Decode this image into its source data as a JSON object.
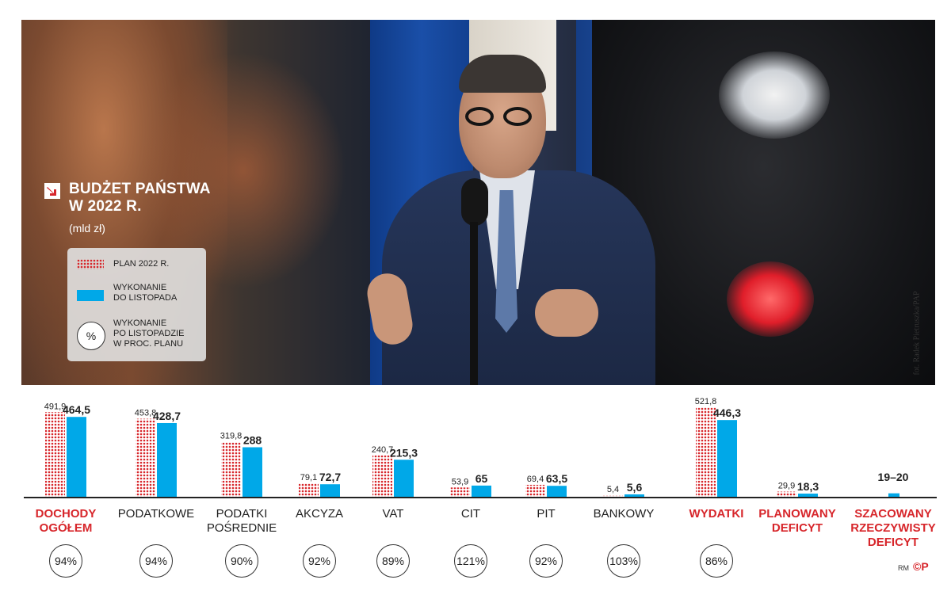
{
  "title": {
    "line1": "BUDŻET PAŃSTWA",
    "line2": "W 2022 R.",
    "unit": "(mld zł)"
  },
  "legend": {
    "plan": "PLAN 2022 R.",
    "exec_line1": "WYKONANIE",
    "exec_line2": "DO LISTOPADA",
    "pct_symbol": "%",
    "pct_line1": "WYKONANIE",
    "pct_line2": "PO LISTOPADZIE",
    "pct_line3": "W PROC. PLANU"
  },
  "photo_credit": "fot. Radek Pietruszka/PAP",
  "footer": {
    "author": "RM",
    "logo": "©P"
  },
  "colors": {
    "plan": "#d7262b",
    "exec": "#00a8e8",
    "highlight": "#d7262b",
    "text": "#222222"
  },
  "chart_data": {
    "type": "bar",
    "categories": [
      {
        "label": [
          "DOCHODY",
          "OGÓŁEM"
        ],
        "highlight": true
      },
      {
        "label": [
          "PODATKOWE"
        ],
        "highlight": false
      },
      {
        "label": [
          "PODATKI",
          "POŚREDNIE"
        ],
        "highlight": false
      },
      {
        "label": [
          "AKCYZA"
        ],
        "highlight": false
      },
      {
        "label": [
          "VAT"
        ],
        "highlight": false
      },
      {
        "label": [
          "CIT"
        ],
        "highlight": false
      },
      {
        "label": [
          "PIT"
        ],
        "highlight": false
      },
      {
        "label": [
          "BANKOWY"
        ],
        "highlight": false
      },
      {
        "label": [
          "WYDATKI"
        ],
        "highlight": true
      },
      {
        "label": [
          "PLANOWANY",
          "DEFICYT"
        ],
        "highlight": true
      },
      {
        "label": [
          "SZACOWANY",
          "RZECZYWISTY",
          "DEFICYT"
        ],
        "highlight": true
      }
    ],
    "series": [
      {
        "name": "PLAN 2022 R.",
        "values": [
          491.9,
          453.8,
          319.8,
          79.1,
          240.7,
          53.9,
          69.4,
          5.4,
          521.8,
          29.9,
          null
        ],
        "labels": [
          "491,9",
          "453,8",
          "319,8",
          "79,1",
          "240,7",
          "53,9",
          "69,4",
          "5,4",
          "521,8",
          "29,9",
          ""
        ]
      },
      {
        "name": "WYKONANIE DO LISTOPADA",
        "values": [
          464.5,
          428.7,
          288,
          72.7,
          215.3,
          65,
          63.5,
          5.6,
          446.3,
          18.3,
          20
        ],
        "labels": [
          "464,5",
          "428,7",
          "288",
          "72,7",
          "215,3",
          "65",
          "63,5",
          "5,6",
          "446,3",
          "18,3",
          "19–20"
        ]
      }
    ],
    "percent": [
      "94%",
      "94%",
      "90%",
      "92%",
      "89%",
      "121%",
      "92%",
      "103%",
      "86%",
      "",
      ""
    ],
    "ylim": [
      0,
      530
    ]
  }
}
